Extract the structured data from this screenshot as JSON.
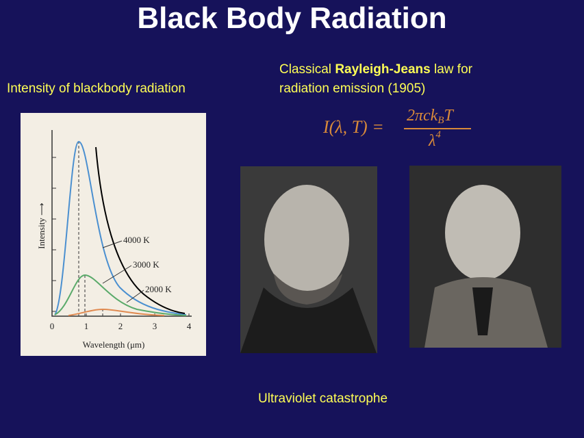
{
  "header": {
    "title": "Black Body Radiation"
  },
  "left_caption": "Intensity of blackbody radiation",
  "right_caption": {
    "before": "Classical ",
    "bold": "Rayleigh-Jeans",
    "after": " law for",
    "line2": "radiation emission (1905)"
  },
  "formula": {
    "lhs": "I(λ, T) =",
    "numerator": "2πck",
    "subscript": "B",
    "numerator_tail": "T",
    "denominator": "λ",
    "exponent": "4"
  },
  "figure": {
    "y_label": "Intensity ⟶",
    "x_label": "Wavelength (μm)",
    "x_ticks": [
      "0",
      "1",
      "2",
      "3",
      "4"
    ],
    "curve_labels": [
      "4000 K",
      "3000 K",
      "2000 K"
    ]
  },
  "footer": "Ultraviolet catastrophe"
}
